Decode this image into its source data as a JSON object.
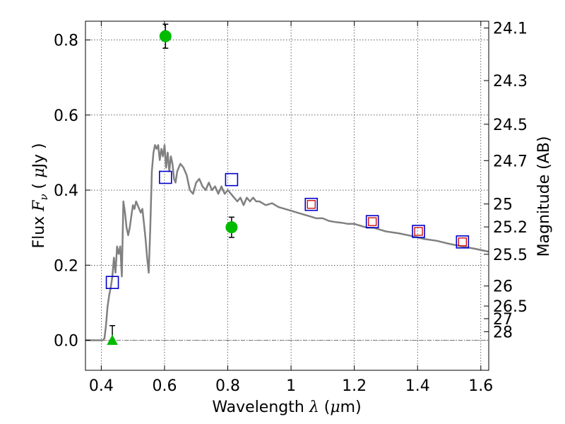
{
  "chart_data": {
    "type": "scatter",
    "xlabel_text": "Wavelength  ",
    "xlabel_lambda": "λ",
    "xlabel_unit_open": " (",
    "xlabel_mu": "μ",
    "xlabel_unit_close": "m)",
    "ylabel_text": "Flux  ",
    "ylabel_F": "F",
    "ylabel_nu": "ν",
    "ylabel_unit_open": "  ( ",
    "ylabel_mu": "μ",
    "ylabel_unit_close": "Jy )",
    "y2label": "Magnitude (AB)",
    "xlim": [
      0.35,
      1.625
    ],
    "ylim": [
      -0.08,
      0.85
    ],
    "x_ticks": [
      {
        "value": 0.4,
        "label": "0.4"
      },
      {
        "value": 0.6,
        "label": "0.6"
      },
      {
        "value": 0.8,
        "label": "0.8"
      },
      {
        "value": 1.0,
        "label": "1"
      },
      {
        "value": 1.2,
        "label": "1.2"
      },
      {
        "value": 1.4,
        "label": "1.4"
      },
      {
        "value": 1.6,
        "label": "1.6"
      }
    ],
    "y_ticks": [
      {
        "value": 0.0,
        "label": "0.0"
      },
      {
        "value": 0.2,
        "label": "0.2"
      },
      {
        "value": 0.4,
        "label": "0.4"
      },
      {
        "value": 0.6,
        "label": "0.6"
      },
      {
        "value": 0.8,
        "label": "0.8"
      }
    ],
    "mag_ticks": [
      "24.1",
      "24.3",
      "24.5",
      "24.7",
      "25",
      "25.2",
      "25.5",
      "26",
      "26.5",
      "27",
      "28"
    ],
    "sed_model": {
      "color": "#808080",
      "x": [
        0.35,
        0.36,
        0.37,
        0.38,
        0.39,
        0.4,
        0.405,
        0.41,
        0.415,
        0.42,
        0.425,
        0.43,
        0.435,
        0.44,
        0.445,
        0.45,
        0.455,
        0.46,
        0.465,
        0.47,
        0.475,
        0.48,
        0.485,
        0.49,
        0.495,
        0.5,
        0.505,
        0.51,
        0.515,
        0.52,
        0.525,
        0.53,
        0.535,
        0.54,
        0.545,
        0.55,
        0.555,
        0.56,
        0.565,
        0.57,
        0.575,
        0.58,
        0.585,
        0.59,
        0.595,
        0.6,
        0.605,
        0.61,
        0.615,
        0.62,
        0.625,
        0.63,
        0.635,
        0.64,
        0.645,
        0.65,
        0.66,
        0.67,
        0.68,
        0.69,
        0.7,
        0.71,
        0.72,
        0.73,
        0.74,
        0.75,
        0.76,
        0.77,
        0.78,
        0.79,
        0.8,
        0.81,
        0.82,
        0.83,
        0.84,
        0.85,
        0.86,
        0.87,
        0.88,
        0.89,
        0.9,
        0.92,
        0.94,
        0.96,
        0.98,
        1.0,
        1.02,
        1.04,
        1.06,
        1.08,
        1.1,
        1.12,
        1.14,
        1.16,
        1.18,
        1.2,
        1.22,
        1.24,
        1.26,
        1.28,
        1.3,
        1.34,
        1.38,
        1.42,
        1.46,
        1.5,
        1.54,
        1.58,
        1.625
      ],
      "y": [
        0.0,
        0.0,
        0.0,
        0.0,
        0.0,
        0.0,
        0.0,
        0.005,
        0.04,
        0.09,
        0.12,
        0.14,
        0.17,
        0.22,
        0.18,
        0.25,
        0.23,
        0.25,
        0.17,
        0.37,
        0.34,
        0.3,
        0.28,
        0.3,
        0.33,
        0.36,
        0.35,
        0.37,
        0.36,
        0.35,
        0.34,
        0.35,
        0.31,
        0.27,
        0.22,
        0.18,
        0.3,
        0.45,
        0.5,
        0.52,
        0.51,
        0.52,
        0.48,
        0.51,
        0.49,
        0.52,
        0.46,
        0.5,
        0.45,
        0.49,
        0.47,
        0.43,
        0.42,
        0.45,
        0.46,
        0.47,
        0.46,
        0.44,
        0.4,
        0.39,
        0.42,
        0.43,
        0.41,
        0.4,
        0.42,
        0.4,
        0.41,
        0.39,
        0.41,
        0.39,
        0.4,
        0.39,
        0.38,
        0.37,
        0.38,
        0.36,
        0.38,
        0.37,
        0.38,
        0.37,
        0.37,
        0.36,
        0.365,
        0.355,
        0.35,
        0.345,
        0.34,
        0.335,
        0.33,
        0.325,
        0.325,
        0.318,
        0.315,
        0.313,
        0.31,
        0.31,
        0.305,
        0.3,
        0.3,
        0.295,
        0.29,
        0.285,
        0.278,
        0.27,
        0.265,
        0.257,
        0.25,
        0.244,
        0.236
      ]
    },
    "model_bandpass_flux": {
      "color": "#0000cc",
      "x": [
        0.435,
        0.603,
        0.812,
        1.064,
        1.257,
        1.403,
        1.542
      ],
      "y": [
        0.154,
        0.434,
        0.428,
        0.362,
        0.316,
        0.29,
        0.262
      ]
    },
    "observed_red": {
      "color": "#cc0000",
      "x": [
        1.064,
        1.257,
        1.403,
        1.542
      ],
      "y": [
        0.362,
        0.316,
        0.29,
        0.262
      ]
    },
    "observed_green": {
      "color": "#00bb00",
      "points": [
        {
          "x": 0.603,
          "y": 0.81,
          "err": 0.032
        },
        {
          "x": 0.812,
          "y": 0.301,
          "err": 0.027
        }
      ]
    },
    "upper_limit": {
      "color": "#00bb00",
      "x": 0.435,
      "y": 0.0,
      "err": 0.039
    }
  }
}
